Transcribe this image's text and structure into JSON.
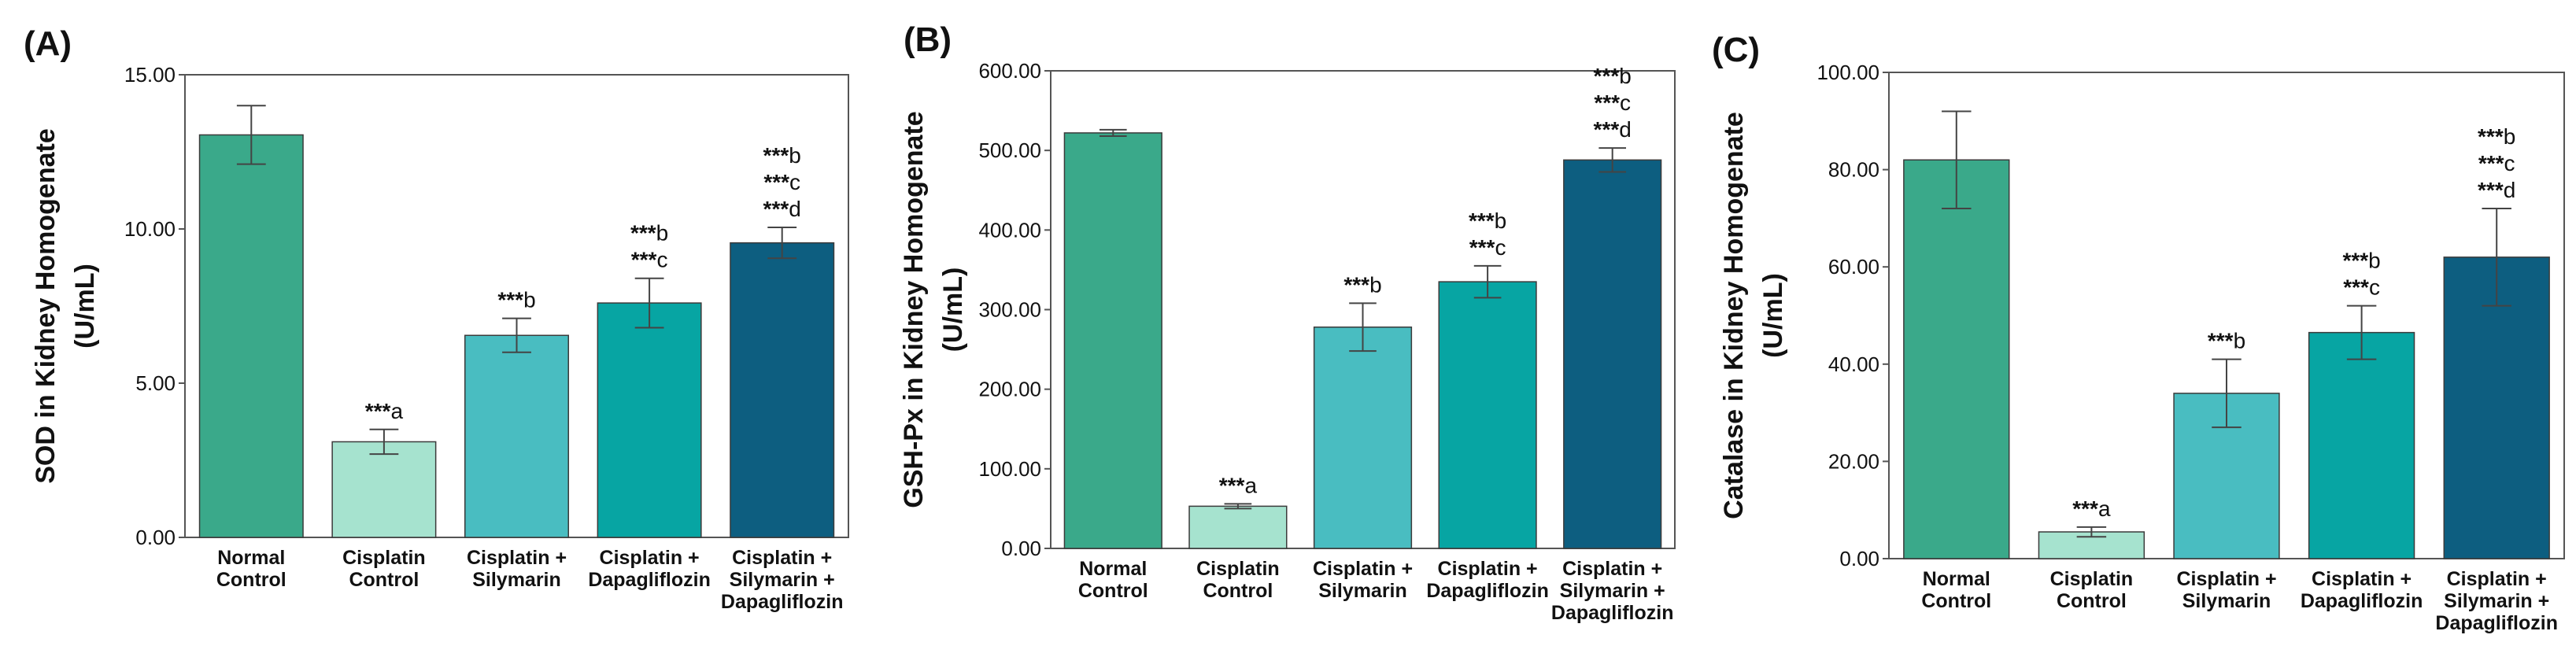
{
  "colors": {
    "normal_control": "#3aa98a",
    "cisplatin_control": "#a6e3cf",
    "cisplatin_silymarin": "#49bdc1",
    "cisplatin_dapagliflozin": "#07a5a3",
    "cisplatin_silymarin_dapagliflozin": "#0d5e80",
    "axis": "#555555",
    "text": "#111111"
  },
  "chart_data": [
    {
      "type": "bar",
      "panel_label": "(A)",
      "ylabel_lines": [
        "SOD in Kidney Homogenate",
        "(U/mL)"
      ],
      "xlabel": "",
      "ylim": [
        0,
        15
      ],
      "yticks": [
        "0.00",
        "5.00",
        "10.00",
        "15.00"
      ],
      "ytick_values": [
        0,
        5,
        10,
        15
      ],
      "categories": [
        [
          "Normal",
          "Control"
        ],
        [
          "Cisplatin",
          "Control"
        ],
        [
          "Cisplatin +",
          "Silymarin"
        ],
        [
          "Cisplatin +",
          "Dapagliflozin"
        ],
        [
          "Cisplatin +",
          "Silymarin +",
          "Dapagliflozin"
        ]
      ],
      "values": [
        13.05,
        3.1,
        6.55,
        7.6,
        9.55
      ],
      "errors": [
        0.95,
        0.4,
        0.55,
        0.8,
        0.5
      ],
      "annotations": [
        [],
        [
          "***a"
        ],
        [
          "***b"
        ],
        [
          "***b",
          "***c"
        ],
        [
          "***b",
          "***c",
          "***d"
        ]
      ],
      "grid": false
    },
    {
      "type": "bar",
      "panel_label": "(B)",
      "ylabel_lines": [
        "GSH-Px in Kidney Homogenate",
        "(U/mL)"
      ],
      "xlabel": "",
      "ylim": [
        0,
        600
      ],
      "yticks": [
        "0.00",
        "100.00",
        "200.00",
        "300.00",
        "400.00",
        "500.00",
        "600.00"
      ],
      "ytick_values": [
        0,
        100,
        200,
        300,
        400,
        500,
        600
      ],
      "categories": [
        [
          "Normal",
          "Control"
        ],
        [
          "Cisplatin",
          "Control"
        ],
        [
          "Cisplatin +",
          "Silymarin"
        ],
        [
          "Cisplatin +",
          "Dapagliflozin"
        ],
        [
          "Cisplatin +",
          "Silymarin +",
          "Dapagliflozin"
        ]
      ],
      "values": [
        522,
        53,
        278,
        335,
        488
      ],
      "errors": [
        4,
        3,
        30,
        20,
        15
      ],
      "annotations": [
        [],
        [
          "***a"
        ],
        [
          "***b"
        ],
        [
          "***b",
          "***c"
        ],
        [
          "***b",
          "***c",
          "***d"
        ]
      ],
      "grid": false
    },
    {
      "type": "bar",
      "panel_label": "(C)",
      "ylabel_lines": [
        "Catalase in Kidney Homogenate",
        "(U/mL)"
      ],
      "xlabel": "",
      "ylim": [
        0,
        100
      ],
      "yticks": [
        "0.00",
        "20.00",
        "40.00",
        "60.00",
        "80.00",
        "100.00"
      ],
      "ytick_values": [
        0,
        20,
        40,
        60,
        80,
        100
      ],
      "categories": [
        [
          "Normal",
          "Control"
        ],
        [
          "Cisplatin",
          "Control"
        ],
        [
          "Cisplatin +",
          "Silymarin"
        ],
        [
          "Cisplatin +",
          "Dapagliflozin"
        ],
        [
          "Cisplatin +",
          "Silymarin +",
          "Dapagliflozin"
        ]
      ],
      "values": [
        82,
        5.5,
        34,
        46.5,
        62
      ],
      "errors": [
        10,
        1,
        7,
        5.5,
        10
      ],
      "annotations": [
        [],
        [
          "***a"
        ],
        [
          "***b"
        ],
        [
          "***b",
          "***c"
        ],
        [
          "***b",
          "***c",
          "***d"
        ]
      ],
      "grid": false
    }
  ]
}
